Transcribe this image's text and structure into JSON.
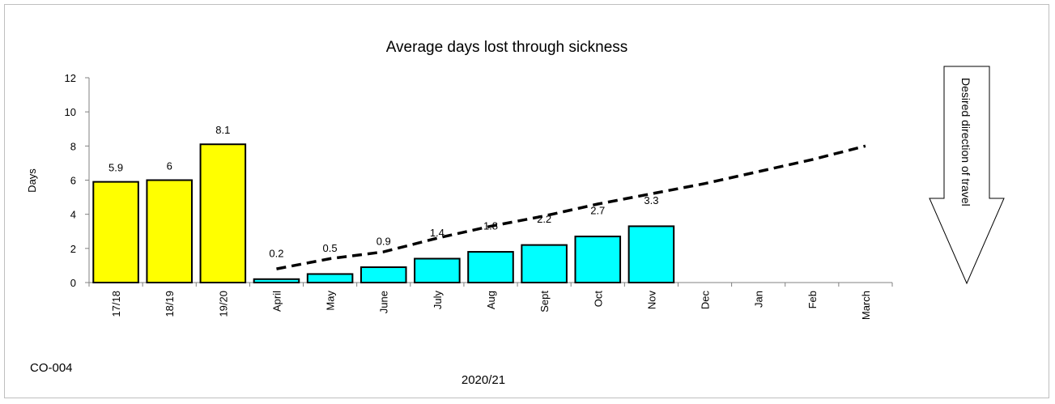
{
  "chart_data": {
    "type": "bar",
    "title": "Average days lost through sickness",
    "xlabel": "2020/21",
    "ylabel": "Days",
    "ylim": [
      0,
      12
    ],
    "yticks": [
      0,
      2,
      4,
      6,
      8,
      10,
      12
    ],
    "categories": [
      "17/18",
      "18/19",
      "19/20",
      "April",
      "May",
      "June",
      "July",
      "Aug",
      "Sept",
      "Oct",
      "Nov",
      "Dec",
      "Jan",
      "Feb",
      "March"
    ],
    "series": [
      {
        "kind": "bar",
        "values": [
          5.9,
          6,
          8.1,
          0.2,
          0.5,
          0.9,
          1.4,
          1.8,
          2.2,
          2.7,
          3.3,
          null,
          null,
          null,
          null
        ],
        "colors": [
          "#ffff00",
          "#ffff00",
          "#ffff00",
          "#00ffff",
          "#00ffff",
          "#00ffff",
          "#00ffff",
          "#00ffff",
          "#00ffff",
          "#00ffff",
          "#00ffff"
        ]
      },
      {
        "kind": "line",
        "style": "dashed",
        "values": [
          null,
          null,
          null,
          0.8,
          1.4,
          1.8,
          2.6,
          3.3,
          3.9,
          4.6,
          5.2,
          5.8,
          6.5,
          7.2,
          8.0
        ]
      }
    ],
    "annotation": "Desired direction of travel",
    "code": "CO-004"
  }
}
